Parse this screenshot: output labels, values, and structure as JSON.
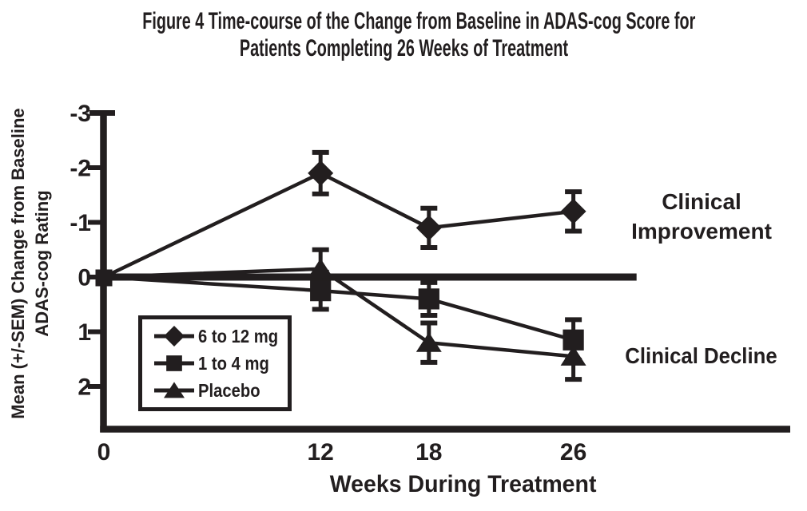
{
  "colors": {
    "ink": "#221e1f",
    "background": "#ffffff"
  },
  "chart_data": {
    "type": "line",
    "title_lines": [
      "Figure 4 Time-course of the Change from Baseline in ADAS-cog Score for",
      "Patients Completing 26 Weeks of Treatment"
    ],
    "xlabel": "Weeks During Treatment",
    "ylabel_lines": [
      "Mean (+/-SEM) Change from Baseline",
      "ADAS-cog Rating"
    ],
    "x": [
      0,
      12,
      18,
      26
    ],
    "xticks": [
      "0",
      "12",
      "18",
      "26"
    ],
    "yticks": [
      "-3",
      "-2",
      "-1",
      "0",
      "1",
      "2"
    ],
    "xlim": [
      0,
      38
    ],
    "ylim": [
      -3.05,
      2.85
    ],
    "y_axis_inverted_note": "negative change (improvement) plotted upward",
    "baseline_value": 0,
    "baseline_extent_weeks": 29.5,
    "grid": false,
    "series": [
      {
        "name": "6 to 12 mg",
        "marker": "diamond",
        "values": [
          0,
          -1.9,
          -0.9,
          -1.2
        ],
        "sem": [
          0,
          0.38,
          0.36,
          0.36
        ]
      },
      {
        "name": "1 to 4 mg",
        "marker": "square",
        "values": [
          0,
          0.25,
          0.4,
          1.15
        ],
        "sem": [
          0,
          0.34,
          0.3,
          0.37
        ]
      },
      {
        "name": "Placebo",
        "marker": "triangle",
        "values": [
          0,
          -0.15,
          1.2,
          1.45
        ],
        "sem": [
          0,
          0.35,
          0.36,
          0.42
        ]
      }
    ],
    "annotations": [
      {
        "lines": [
          "Clinical",
          "Improvement"
        ]
      },
      {
        "lines": [
          "Clinical Decline"
        ]
      }
    ],
    "legend": {
      "position": "inside lower-left",
      "items": [
        "6 to 12 mg",
        "1 to 4 mg",
        "Placebo"
      ]
    }
  }
}
